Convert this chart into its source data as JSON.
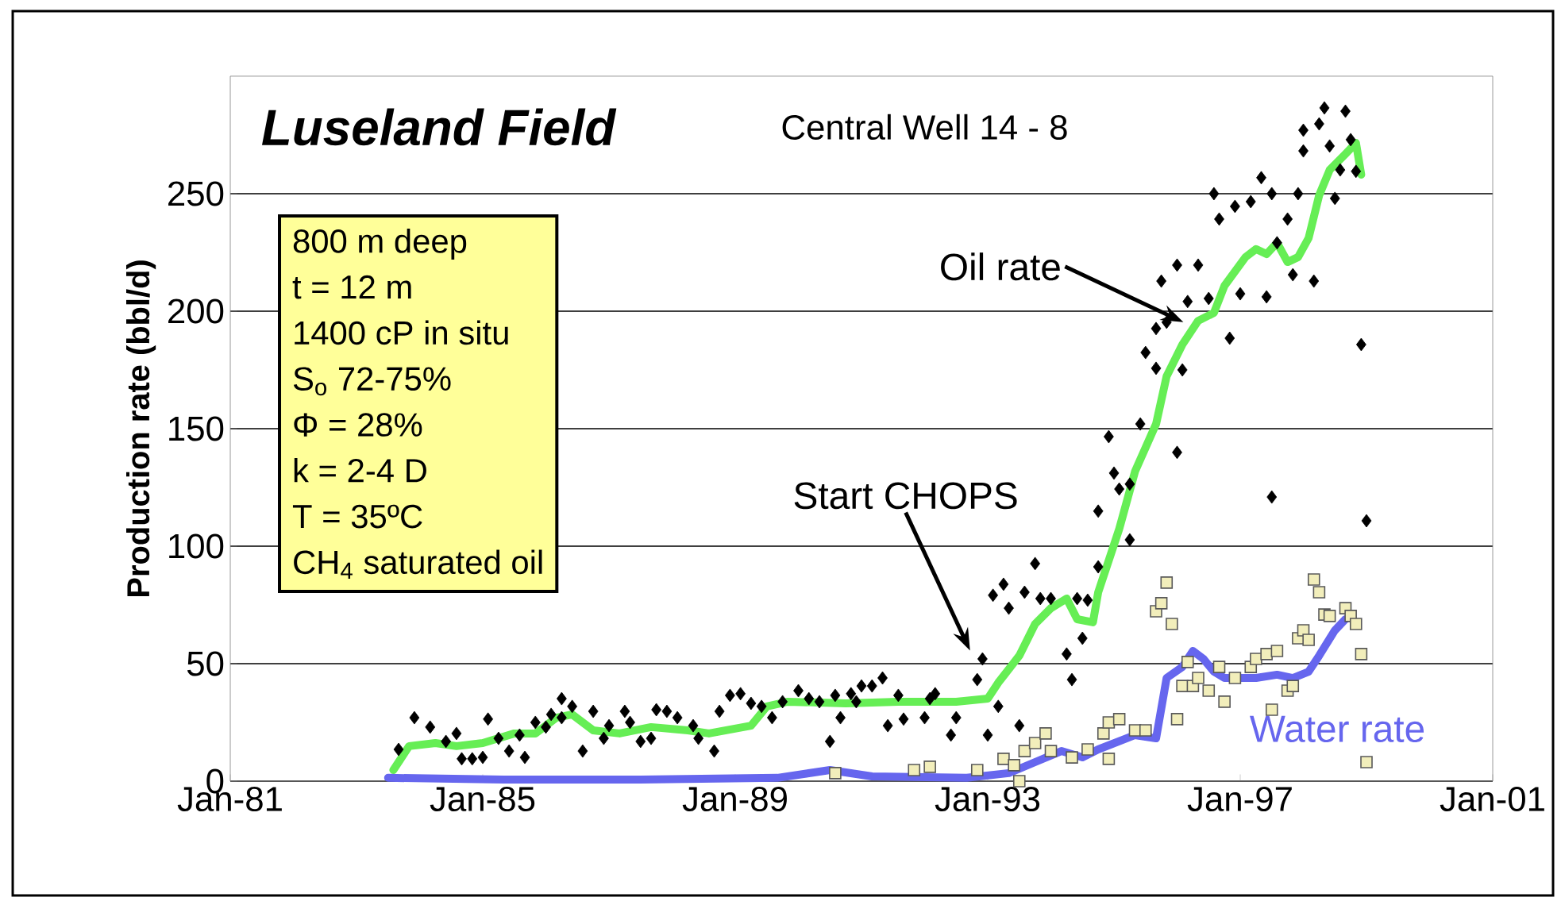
{
  "chart_data": {
    "type": "scatter",
    "title": "Luseland Field",
    "subtitle": "Central Well 14 - 8",
    "ylabel": "Production rate (bbl/d)",
    "xlim": [
      "1981-01",
      "2001-01"
    ],
    "xticks": [
      {
        "value": "1981-01",
        "label": "Jan-81"
      },
      {
        "value": "1985-01",
        "label": "Jan-85"
      },
      {
        "value": "1989-01",
        "label": "Jan-89"
      },
      {
        "value": "1993-01",
        "label": "Jan-93"
      },
      {
        "value": "1997-01",
        "label": "Jan-97"
      },
      {
        "value": "2001-01",
        "label": "Jan-01"
      }
    ],
    "ylim": [
      0,
      300
    ],
    "yticks": [
      0,
      50,
      100,
      150,
      200,
      250
    ],
    "grid": "y",
    "annotations": [
      "800 m deep",
      "t = 12 m",
      "1400 cP in situ",
      "S$_{o}$ 72-75%",
      "Φ = 28%",
      "k = 2-4 D",
      "T = 35ºC",
      "CH$_{4}$ saturated oil",
      "Oil rate",
      "Start CHOPS"
    ],
    "series": [
      {
        "marker": "diamond",
        "color": "#000000",
        "x": [
          "1983-09",
          "1983-12",
          "1984-03",
          "1984-06",
          "1984-08",
          "1984-09",
          "1984-11",
          "1985-01",
          "1985-02",
          "1985-04",
          "1985-06",
          "1985-08",
          "1985-09",
          "1985-11",
          "1986-01",
          "1986-02",
          "1986-04",
          "1986-04",
          "1986-06",
          "1986-08",
          "1986-10",
          "1986-12",
          "1987-01",
          "1987-04",
          "1987-05",
          "1987-07",
          "1987-09",
          "1987-10",
          "1987-12",
          "1988-02",
          "1988-05",
          "1988-06",
          "1988-09",
          "1988-10",
          "1988-12",
          "1989-02",
          "1989-04",
          "1989-06",
          "1989-08",
          "1989-10",
          "1990-01",
          "1990-03",
          "1990-05",
          "1990-07",
          "1990-08",
          "1990-09",
          "1990-11",
          "1990-12",
          "1991-01",
          "1991-03",
          "1991-05",
          "1991-06",
          "1991-08",
          "1991-09",
          "1992-01",
          "1992-02",
          "1992-03",
          "1992-06",
          "1992-07",
          "1992-11",
          "1992-12",
          "1993-01",
          "1993-03",
          "1993-02",
          "1993-04",
          "1993-05",
          "1993-07",
          "1993-08",
          "1993-10",
          "1993-11",
          "1994-01",
          "1994-04",
          "1994-05",
          "1994-06",
          "1994-07",
          "1994-08",
          "1994-10",
          "1994-10",
          "1994-12",
          "1995-01",
          "1995-02",
          "1995-04",
          "1995-04",
          "1995-06",
          "1995-07",
          "1995-09",
          "1995-09",
          "1995-11",
          "1995-10",
          "1996-01",
          "1996-01",
          "1996-02",
          "1996-03",
          "1996-05",
          "1996-07",
          "1996-08",
          "1996-09",
          "1996-11",
          "1996-12",
          "1997-01",
          "1997-03",
          "1997-05",
          "1997-06",
          "1997-07",
          "1997-07",
          "1997-08",
          "1997-10",
          "1997-11",
          "1997-12",
          "1998-01",
          "1998-01",
          "1998-03",
          "1998-04",
          "1998-05",
          "1998-06",
          "1998-07",
          "1998-08",
          "1998-09",
          "1998-10",
          "1998-11",
          "1998-12",
          "1999-01"
        ],
        "values": [
          13.5,
          27.0,
          23.0,
          16.9,
          20.3,
          9.5,
          9.5,
          10.1,
          26.4,
          18.2,
          12.8,
          19.6,
          10.1,
          25.0,
          23.0,
          28.4,
          35.1,
          27.0,
          31.8,
          12.8,
          29.7,
          18.2,
          23.6,
          29.7,
          25.0,
          16.9,
          18.2,
          30.4,
          29.7,
          27.0,
          23.6,
          18.2,
          12.8,
          29.7,
          36.5,
          37.2,
          33.1,
          31.8,
          27.0,
          33.8,
          38.5,
          35.1,
          33.8,
          16.9,
          36.5,
          27.0,
          37.2,
          33.8,
          40.5,
          40.5,
          43.9,
          23.6,
          36.5,
          26.4,
          27.0,
          35.1,
          37.2,
          19.6,
          27.0,
          43.2,
          52.0,
          19.6,
          31.8,
          79.1,
          83.8,
          73.6,
          23.6,
          80.4,
          92.6,
          77.7,
          77.7,
          54.1,
          43.2,
          77.7,
          60.8,
          77.0,
          91.2,
          114.9,
          146.6,
          131.1,
          124.3,
          126.4,
          102.7,
          152.0,
          182.4,
          175.7,
          192.6,
          195.3,
          212.8,
          219.6,
          139.9,
          175.0,
          204.1,
          219.6,
          205.4,
          250.0,
          239.2,
          188.5,
          244.6,
          207.4,
          246.6,
          256.8,
          206.1,
          250.0,
          120.9,
          229.1,
          239.2,
          215.5,
          250.0,
          268.2,
          277.0,
          212.8,
          279.7,
          286.5,
          270.3,
          248.0,
          260.1,
          285.1,
          273.0,
          259.5,
          185.8,
          110.8
        ]
      },
      {
        "marker": "square",
        "color": "#f2eebb",
        "x": [
          "1990-08",
          "1991-11",
          "1992-02",
          "1992-11",
          "1993-04",
          "1993-06",
          "1993-07",
          "1993-08",
          "1993-10",
          "1993-12",
          "1994-01",
          "1994-05",
          "1994-08",
          "1994-11",
          "1994-12",
          "1995-02",
          "1994-12",
          "1995-05",
          "1995-07",
          "1995-09",
          "1995-10",
          "1995-11",
          "1995-12",
          "1996-01",
          "1996-02",
          "1996-03",
          "1996-04",
          "1996-05",
          "1996-07",
          "1996-09",
          "1996-10",
          "1996-12",
          "1997-03",
          "1997-04",
          "1997-06",
          "1997-07",
          "1997-08",
          "1997-10",
          "1997-11",
          "1997-12",
          "1998-01",
          "1998-02",
          "1998-03",
          "1998-04",
          "1998-05",
          "1998-06",
          "1998-09",
          "1998-10",
          "1998-11",
          "1998-12",
          "1999-01"
        ],
        "values": [
          3.4,
          4.7,
          6.1,
          4.7,
          9.5,
          6.8,
          0,
          12.8,
          16.2,
          20.3,
          12.8,
          10.1,
          13.5,
          20.3,
          25.0,
          26.4,
          9.5,
          21.6,
          21.6,
          72.3,
          75.7,
          84.5,
          66.9,
          26.4,
          40.5,
          50.7,
          40.5,
          43.9,
          38.5,
          48.6,
          33.8,
          43.9,
          48.6,
          52.0,
          54.1,
          30.4,
          55.4,
          38.5,
          40.5,
          60.8,
          64.2,
          60.1,
          85.8,
          80.4,
          70.9,
          70.3,
          73.6,
          70.3,
          66.9,
          54.1,
          8.1
        ]
      },
      {
        "type": "line",
        "color": "#66ee55",
        "x": [
          "1983-08",
          "1983-11",
          "1984-04",
          "1984-08",
          "1985-01",
          "1985-07",
          "1985-11",
          "1986-03",
          "1986-06",
          "1986-10",
          "1987-03",
          "1987-09",
          "1988-04",
          "1988-08",
          "1989-04",
          "1989-07",
          "1989-11",
          "1990-10",
          "1991-08",
          "1992-07",
          "1993-01",
          "1993-03",
          "1993-07",
          "1993-10",
          "1994-01",
          "1994-04",
          "1994-06",
          "1994-09",
          "1994-10",
          "1995-02",
          "1995-05",
          "1995-09",
          "1995-11",
          "1996-02",
          "1996-05",
          "1996-08",
          "1996-10",
          "1997-02",
          "1997-04",
          "1997-06",
          "1997-08",
          "1997-10",
          "1997-12",
          "1998-02",
          "1998-04",
          "1998-06",
          "1998-09",
          "1998-11",
          "1998-12"
        ],
        "values": [
          4.7,
          14.9,
          16.2,
          14.9,
          16.2,
          20.3,
          20.3,
          27.0,
          28.4,
          21.6,
          20.3,
          23.0,
          21.6,
          20.3,
          23.6,
          31.8,
          33.8,
          33.1,
          33.8,
          33.8,
          35.1,
          41.9,
          53.4,
          66.9,
          73.6,
          77.7,
          68.9,
          67.6,
          80.4,
          107.4,
          131.8,
          152.0,
          172.3,
          185.8,
          195.9,
          199.3,
          210.8,
          223.0,
          226.4,
          224.3,
          229.1,
          220.9,
          223.0,
          231.1,
          249.3,
          260.1,
          266.9,
          271.6,
          258.1
        ]
      },
      {
        "type": "line",
        "name": "Water rate",
        "color": "#6666ee",
        "x": [
          "1983-07",
          "1985-05",
          "1987-07",
          "1989-09",
          "1990-07",
          "1991-03",
          "1992-09",
          "1993-05",
          "1993-10",
          "1994-03",
          "1994-07",
          "1994-10",
          "1995-05",
          "1995-09",
          "1995-11",
          "1996-02",
          "1996-04",
          "1996-06",
          "1996-08",
          "1996-10",
          "1997-04",
          "1997-08",
          "1997-11",
          "1998-02",
          "1998-04",
          "1998-07",
          "1998-09"
        ],
        "values": [
          1.4,
          0.7,
          0.7,
          1.4,
          4.7,
          2.0,
          1.4,
          3.4,
          8.1,
          12.8,
          10.1,
          13.5,
          19.6,
          18.2,
          43.9,
          48.6,
          55.4,
          52.0,
          46.6,
          43.9,
          43.9,
          45.3,
          43.9,
          46.6,
          53.4,
          64.2,
          68.9
        ]
      }
    ]
  }
}
